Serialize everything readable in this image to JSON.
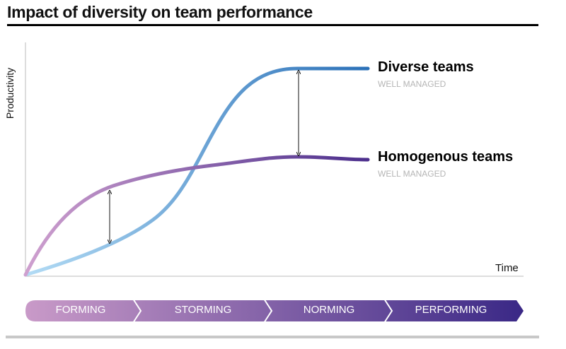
{
  "title": "Impact of diversity on team performance",
  "axes": {
    "y_label": "Productivity",
    "x_label": "Time"
  },
  "series": [
    {
      "name": "Diverse teams",
      "subtitle": "WELL MANAGED",
      "color_start": "#b3dcf5",
      "color_end": "#2a70b8"
    },
    {
      "name": "Homogenous teams",
      "subtitle": "WELL MANAGED",
      "color_start": "#cfa0cf",
      "color_end": "#4b2e8c"
    }
  ],
  "stages": [
    "FORMING",
    "STORMING",
    "NORMING",
    "PERFORMING"
  ],
  "stage_colors": {
    "start": "#c99ac8",
    "end": "#3a2886"
  }
}
